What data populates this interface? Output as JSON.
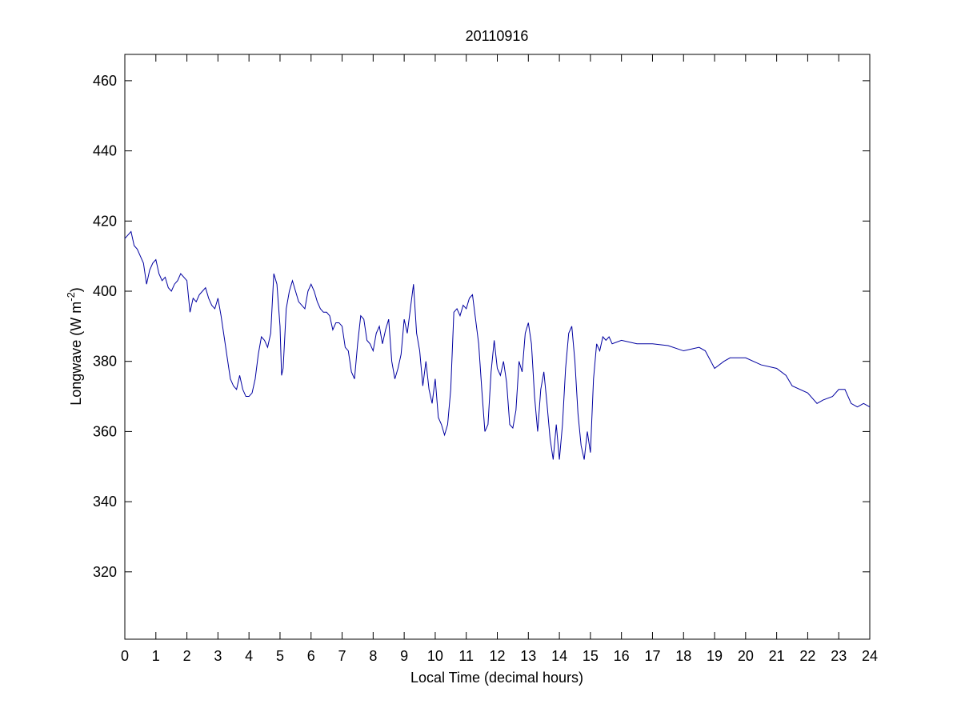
{
  "chart_data": {
    "type": "line",
    "title": "20110916",
    "xlabel": "Local Time (decimal hours)",
    "ylabel": [
      "Longwave (W m",
      "-2",
      ")"
    ],
    "xlim": [
      0,
      24
    ],
    "xticks": [
      0,
      1,
      2,
      3,
      4,
      5,
      6,
      7,
      8,
      9,
      10,
      11,
      12,
      13,
      14,
      15,
      16,
      17,
      18,
      19,
      20,
      21,
      22,
      23,
      24
    ],
    "ylim": [
      300.8,
      467.5
    ],
    "yticks": [
      320,
      340,
      360,
      380,
      400,
      420,
      440,
      460
    ],
    "grid": false,
    "series": [
      {
        "name": "Longwave",
        "color": "#0000a0",
        "x": [
          0,
          0.1,
          0.2,
          0.3,
          0.4,
          0.5,
          0.6,
          0.7,
          0.8,
          0.9,
          1.0,
          1.1,
          1.2,
          1.3,
          1.4,
          1.5,
          1.6,
          1.7,
          1.8,
          1.9,
          2.0,
          2.1,
          2.2,
          2.3,
          2.4,
          2.5,
          2.6,
          2.7,
          2.8,
          2.9,
          3.0,
          3.1,
          3.2,
          3.3,
          3.4,
          3.5,
          3.6,
          3.7,
          3.8,
          3.9,
          4.0,
          4.1,
          4.2,
          4.3,
          4.4,
          4.5,
          4.6,
          4.7,
          4.8,
          4.9,
          5.0,
          5.05,
          5.1,
          5.2,
          5.3,
          5.4,
          5.5,
          5.6,
          5.7,
          5.8,
          5.9,
          6.0,
          6.1,
          6.2,
          6.3,
          6.4,
          6.5,
          6.6,
          6.7,
          6.8,
          6.9,
          7.0,
          7.1,
          7.2,
          7.3,
          7.4,
          7.5,
          7.6,
          7.7,
          7.8,
          7.9,
          8.0,
          8.1,
          8.2,
          8.3,
          8.4,
          8.5,
          8.6,
          8.7,
          8.8,
          8.9,
          9.0,
          9.1,
          9.2,
          9.3,
          9.4,
          9.5,
          9.6,
          9.7,
          9.8,
          9.9,
          10.0,
          10.1,
          10.2,
          10.3,
          10.4,
          10.5,
          10.6,
          10.7,
          10.8,
          10.9,
          11.0,
          11.1,
          11.2,
          11.3,
          11.4,
          11.5,
          11.6,
          11.7,
          11.8,
          11.9,
          12.0,
          12.1,
          12.2,
          12.3,
          12.4,
          12.5,
          12.6,
          12.7,
          12.8,
          12.9,
          13.0,
          13.1,
          13.2,
          13.3,
          13.4,
          13.5,
          13.6,
          13.7,
          13.8,
          13.9,
          14.0,
          14.1,
          14.2,
          14.3,
          14.4,
          14.5,
          14.6,
          14.7,
          14.8,
          14.9,
          15.0,
          15.1,
          15.2,
          15.3,
          15.4,
          15.5,
          15.6,
          15.7,
          16.0,
          16.5,
          17.0,
          17.5,
          18.0,
          18.5,
          18.7,
          19.0,
          19.3,
          19.5,
          20.0,
          20.5,
          21.0,
          21.3,
          21.5,
          22.0,
          22.3,
          22.5,
          22.8,
          23.0,
          23.2,
          23.4,
          23.6,
          23.8,
          24.0
        ],
        "values": [
          415,
          416,
          417,
          413,
          412,
          410,
          408,
          402,
          406,
          408,
          409,
          405,
          403,
          404,
          401,
          400,
          402,
          403,
          405,
          404,
          403,
          394,
          398,
          397,
          399,
          400,
          401,
          398,
          396,
          395,
          398,
          393,
          387,
          381,
          375,
          373,
          372,
          376,
          372,
          370,
          370,
          371,
          375,
          382,
          387,
          386,
          384,
          388,
          405,
          402,
          390,
          376,
          378,
          395,
          400,
          403,
          400,
          397,
          396,
          395,
          400,
          402,
          400,
          397,
          395,
          394,
          394,
          393,
          389,
          391,
          391,
          390,
          384,
          383,
          377,
          375,
          385,
          393,
          392,
          386,
          385,
          383,
          388,
          390,
          385,
          389,
          392,
          380,
          375,
          378,
          382,
          392,
          388,
          395,
          402,
          388,
          383,
          373,
          380,
          372,
          368,
          375,
          364,
          362,
          359,
          362,
          372,
          394,
          395,
          393,
          396,
          395,
          398,
          399,
          392,
          385,
          372,
          360,
          362,
          377,
          386,
          378,
          376,
          380,
          374,
          362,
          361,
          366,
          380,
          377,
          388,
          391,
          385,
          370,
          360,
          372,
          377,
          368,
          358,
          352,
          362,
          352,
          362,
          378,
          388,
          390,
          380,
          365,
          356,
          352,
          360,
          354,
          375,
          385,
          383,
          387,
          386,
          387,
          385,
          386,
          385,
          385,
          384.5,
          383,
          384,
          383,
          378,
          380,
          381,
          381,
          379,
          378,
          376,
          373,
          371,
          368,
          369,
          370,
          372,
          372,
          368,
          367,
          368,
          367
        ]
      }
    ]
  }
}
